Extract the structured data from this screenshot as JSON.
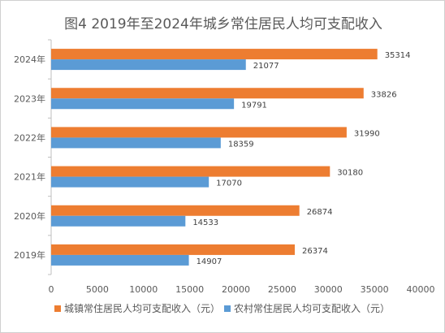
{
  "chart_data": {
    "type": "bar",
    "orientation": "horizontal",
    "title": "图4  2019年至2024年城乡常住居民人均可支配收入",
    "categories": [
      "2024年",
      "2023年",
      "2022年",
      "2021年",
      "2020年",
      "2019年"
    ],
    "series": [
      {
        "name": "城镇常住居民人均可支配收入（元）",
        "color": "#ED7D31",
        "values": [
          35314,
          33826,
          31990,
          30180,
          26874,
          26374
        ]
      },
      {
        "name": "农村常住居民人均可支配收入（元）",
        "color": "#5B9BD5",
        "values": [
          21077,
          19791,
          18359,
          17070,
          14533,
          14907
        ]
      }
    ],
    "xlim": [
      0,
      40000
    ],
    "xticks": [
      "0",
      "5000",
      "10000",
      "15000",
      "20000",
      "25000",
      "30000",
      "35000",
      "40000"
    ],
    "grid": false,
    "legend_position": "bottom",
    "data_labels": true
  }
}
